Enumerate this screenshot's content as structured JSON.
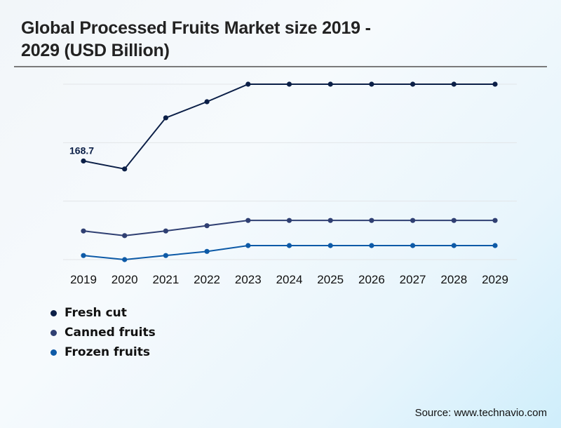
{
  "chart_data": {
    "type": "line",
    "title": "Global Processed Fruits Market size 2019 - 2029 (USD Billion)",
    "xlabel": "",
    "ylabel": "",
    "x": [
      "2019",
      "2020",
      "2021",
      "2022",
      "2023",
      "2024",
      "2025",
      "2026",
      "2027",
      "2028",
      "2029"
    ],
    "ylim": [
      0,
      300
    ],
    "grid": true,
    "gridlines": [
      0,
      100,
      200,
      300
    ],
    "series": [
      {
        "name": "Fresh cut",
        "color": "#0b1f47",
        "values": [
          168.7,
          155,
          242.5,
          270,
          300,
          300,
          300,
          300,
          300,
          300,
          300
        ]
      },
      {
        "name": "Canned fruits",
        "color": "#2f3f72",
        "values": [
          49,
          41,
          49,
          58,
          67,
          67,
          67,
          67,
          67,
          67,
          67
        ]
      },
      {
        "name": "Frozen fruits",
        "color": "#0d5aa7",
        "values": [
          7,
          0,
          7,
          14,
          24,
          24,
          24,
          24,
          24,
          24,
          24
        ]
      }
    ],
    "annotations": [
      {
        "series": "Fresh cut",
        "x": "2019",
        "text": "168.7"
      }
    ],
    "legend": "bottom-left"
  },
  "header": {
    "title_line1": "Global Processed Fruits Market size 2019 -",
    "title_line2": "2029 (USD Billion)"
  },
  "footer": {
    "source": "Source: www.technavio.com"
  }
}
